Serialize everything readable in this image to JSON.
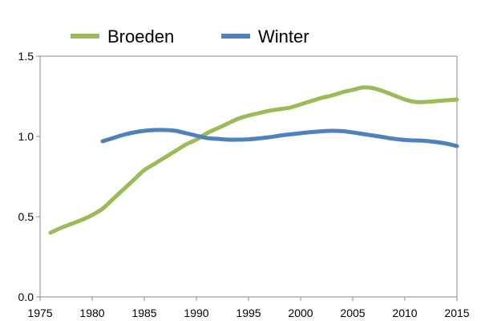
{
  "chart_data": {
    "type": "line",
    "title": "",
    "xlabel": "",
    "ylabel": "",
    "xlim": [
      1975,
      2015
    ],
    "ylim": [
      0,
      1.5
    ],
    "x_ticks": [
      1975,
      1980,
      1985,
      1990,
      1995,
      2000,
      2005,
      2010,
      2015
    ],
    "y_ticks": [
      0.0,
      0.5,
      1.0,
      1.5
    ],
    "y_tick_labels": [
      "0.0",
      "0.5",
      "1.0",
      "1.5"
    ],
    "grid": false,
    "legend": "top",
    "series": [
      {
        "name": "Broeden",
        "color": "#9bbb59",
        "x": [
          1976,
          1977,
          1978,
          1979,
          1980,
          1981,
          1982,
          1983,
          1984,
          1985,
          1986,
          1987,
          1988,
          1989,
          1990,
          1991,
          1992,
          1993,
          1994,
          1995,
          1996,
          1997,
          1998,
          1999,
          2000,
          2001,
          2002,
          2003,
          2004,
          2005,
          2006,
          2007,
          2008,
          2009,
          2010,
          2011,
          2012,
          2013,
          2014,
          2015
        ],
        "y": [
          0.4,
          0.43,
          0.455,
          0.48,
          0.51,
          0.55,
          0.61,
          0.67,
          0.73,
          0.79,
          0.83,
          0.87,
          0.91,
          0.95,
          0.98,
          1.02,
          1.05,
          1.08,
          1.11,
          1.13,
          1.145,
          1.16,
          1.17,
          1.18,
          1.2,
          1.22,
          1.24,
          1.255,
          1.275,
          1.29,
          1.305,
          1.3,
          1.28,
          1.255,
          1.23,
          1.215,
          1.215,
          1.22,
          1.225,
          1.23
        ]
      },
      {
        "name": "Winter",
        "color": "#4f81bd",
        "x": [
          1981,
          1982,
          1983,
          1984,
          1985,
          1986,
          1987,
          1988,
          1989,
          1990,
          1991,
          1992,
          1993,
          1994,
          1995,
          1996,
          1997,
          1998,
          1999,
          2000,
          2001,
          2002,
          2003,
          2004,
          2005,
          2006,
          2007,
          2008,
          2009,
          2010,
          2011,
          2012,
          2013,
          2014,
          2015
        ],
        "y": [
          0.97,
          0.99,
          1.01,
          1.025,
          1.035,
          1.04,
          1.04,
          1.035,
          1.02,
          1.005,
          0.99,
          0.985,
          0.98,
          0.98,
          0.982,
          0.988,
          0.995,
          1.005,
          1.013,
          1.02,
          1.027,
          1.032,
          1.035,
          1.033,
          1.025,
          1.015,
          1.005,
          0.995,
          0.985,
          0.978,
          0.975,
          0.972,
          0.965,
          0.955,
          0.94
        ]
      }
    ]
  }
}
